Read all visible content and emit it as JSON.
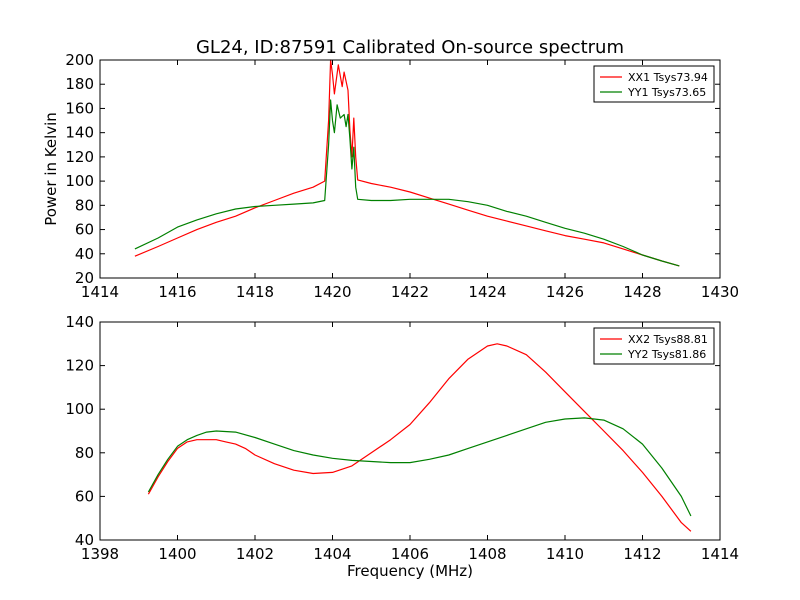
{
  "colors": {
    "xx": "#ff0000",
    "yy": "#008000"
  },
  "chart_data": [
    {
      "type": "line",
      "title": "GL24, ID:87591 Calibrated On-source spectrum",
      "xlabel": "",
      "ylabel": "Power in Kelvin",
      "xlim": [
        1414,
        1430
      ],
      "ylim": [
        20,
        200
      ],
      "xticks": [
        "1414",
        "1416",
        "1418",
        "1420",
        "1422",
        "1424",
        "1426",
        "1428",
        "1430"
      ],
      "yticks": [
        "20",
        "40",
        "60",
        "80",
        "100",
        "120",
        "140",
        "160",
        "180",
        "200"
      ],
      "grid": false,
      "legend": "top-right",
      "series": [
        {
          "name": "XX1 Tsys73.94",
          "color": "#ff0000",
          "points": [
            [
              1414.9,
              38
            ],
            [
              1415.5,
              46
            ],
            [
              1416.0,
              53
            ],
            [
              1416.5,
              60
            ],
            [
              1417.0,
              66
            ],
            [
              1417.5,
              71
            ],
            [
              1418.0,
              78
            ],
            [
              1418.5,
              84
            ],
            [
              1419.0,
              90
            ],
            [
              1419.5,
              95
            ],
            [
              1419.8,
              100
            ],
            [
              1419.9,
              150
            ],
            [
              1419.95,
              200
            ],
            [
              1420.0,
              188
            ],
            [
              1420.05,
              172
            ],
            [
              1420.15,
              196
            ],
            [
              1420.25,
              178
            ],
            [
              1420.3,
              190
            ],
            [
              1420.4,
              175
            ],
            [
              1420.45,
              142
            ],
            [
              1420.5,
              120
            ],
            [
              1420.55,
              152
            ],
            [
              1420.6,
              120
            ],
            [
              1420.65,
              101
            ],
            [
              1421.0,
              98
            ],
            [
              1421.5,
              95
            ],
            [
              1422.0,
              91
            ],
            [
              1422.5,
              86
            ],
            [
              1423.0,
              81
            ],
            [
              1423.5,
              76
            ],
            [
              1424.0,
              71
            ],
            [
              1424.5,
              67
            ],
            [
              1425.0,
              63
            ],
            [
              1425.5,
              59
            ],
            [
              1426.0,
              55
            ],
            [
              1426.5,
              52
            ],
            [
              1427.0,
              49
            ],
            [
              1427.5,
              44
            ],
            [
              1428.0,
              39
            ],
            [
              1428.5,
              34
            ],
            [
              1428.95,
              30
            ]
          ]
        },
        {
          "name": "YY1 Tsys73.65",
          "color": "#008000",
          "points": [
            [
              1414.9,
              44
            ],
            [
              1415.5,
              53
            ],
            [
              1416.0,
              62
            ],
            [
              1416.5,
              68
            ],
            [
              1417.0,
              73
            ],
            [
              1417.5,
              77
            ],
            [
              1418.0,
              79
            ],
            [
              1418.5,
              80
            ],
            [
              1419.0,
              81
            ],
            [
              1419.5,
              82
            ],
            [
              1419.8,
              84
            ],
            [
              1419.9,
              130
            ],
            [
              1419.95,
              167
            ],
            [
              1420.0,
              150
            ],
            [
              1420.05,
              140
            ],
            [
              1420.12,
              163
            ],
            [
              1420.2,
              152
            ],
            [
              1420.3,
              155
            ],
            [
              1420.35,
              145
            ],
            [
              1420.4,
              155
            ],
            [
              1420.45,
              135
            ],
            [
              1420.5,
              110
            ],
            [
              1420.55,
              128
            ],
            [
              1420.6,
              95
            ],
            [
              1420.65,
              85
            ],
            [
              1421.0,
              84
            ],
            [
              1421.5,
              84
            ],
            [
              1422.0,
              85
            ],
            [
              1422.5,
              85
            ],
            [
              1423.0,
              85
            ],
            [
              1423.5,
              83
            ],
            [
              1424.0,
              80
            ],
            [
              1424.5,
              75
            ],
            [
              1425.0,
              71
            ],
            [
              1425.5,
              66
            ],
            [
              1426.0,
              61
            ],
            [
              1426.5,
              57
            ],
            [
              1427.0,
              52
            ],
            [
              1427.5,
              46
            ],
            [
              1428.0,
              39
            ],
            [
              1428.5,
              34
            ],
            [
              1428.95,
              30
            ]
          ]
        }
      ]
    },
    {
      "type": "line",
      "title": "",
      "xlabel": "Frequency (MHz)",
      "ylabel": "",
      "xlim": [
        1398,
        1414
      ],
      "ylim": [
        40,
        140
      ],
      "xticks": [
        "1398",
        "1400",
        "1402",
        "1404",
        "1406",
        "1408",
        "1410",
        "1412",
        "1414"
      ],
      "yticks": [
        "40",
        "60",
        "80",
        "100",
        "120",
        "140"
      ],
      "grid": false,
      "legend": "top-right",
      "series": [
        {
          "name": "XX2 Tsys88.81",
          "color": "#ff0000",
          "points": [
            [
              1399.25,
              61
            ],
            [
              1399.5,
              69
            ],
            [
              1399.75,
              76
            ],
            [
              1400.0,
              82
            ],
            [
              1400.25,
              85
            ],
            [
              1400.5,
              86
            ],
            [
              1400.75,
              86
            ],
            [
              1401.0,
              86
            ],
            [
              1401.25,
              85
            ],
            [
              1401.5,
              84
            ],
            [
              1401.75,
              82
            ],
            [
              1402.0,
              79
            ],
            [
              1402.5,
              75
            ],
            [
              1403.0,
              72
            ],
            [
              1403.5,
              70.5
            ],
            [
              1404.0,
              71
            ],
            [
              1404.5,
              74
            ],
            [
              1405.0,
              80
            ],
            [
              1405.5,
              86
            ],
            [
              1406.0,
              93
            ],
            [
              1406.5,
              103
            ],
            [
              1407.0,
              114
            ],
            [
              1407.5,
              123
            ],
            [
              1408.0,
              129
            ],
            [
              1408.25,
              130
            ],
            [
              1408.5,
              129
            ],
            [
              1409.0,
              125
            ],
            [
              1409.5,
              117
            ],
            [
              1410.0,
              108
            ],
            [
              1410.5,
              99
            ],
            [
              1411.0,
              90
            ],
            [
              1411.5,
              81
            ],
            [
              1412.0,
              71
            ],
            [
              1412.5,
              60
            ],
            [
              1413.0,
              48
            ],
            [
              1413.25,
              44
            ]
          ]
        },
        {
          "name": "YY2 Tsys81.86",
          "color": "#008000",
          "points": [
            [
              1399.25,
              62
            ],
            [
              1399.5,
              70
            ],
            [
              1399.75,
              77
            ],
            [
              1400.0,
              83
            ],
            [
              1400.25,
              86
            ],
            [
              1400.5,
              88
            ],
            [
              1400.75,
              89.5
            ],
            [
              1401.0,
              90
            ],
            [
              1401.5,
              89.5
            ],
            [
              1402.0,
              87
            ],
            [
              1402.5,
              84
            ],
            [
              1403.0,
              81
            ],
            [
              1403.5,
              79
            ],
            [
              1404.0,
              77.5
            ],
            [
              1404.5,
              76.5
            ],
            [
              1405.0,
              76
            ],
            [
              1405.5,
              75.5
            ],
            [
              1406.0,
              75.5
            ],
            [
              1406.5,
              77
            ],
            [
              1407.0,
              79
            ],
            [
              1407.5,
              82
            ],
            [
              1408.0,
              85
            ],
            [
              1408.5,
              88
            ],
            [
              1409.0,
              91
            ],
            [
              1409.5,
              94
            ],
            [
              1410.0,
              95.5
            ],
            [
              1410.5,
              96
            ],
            [
              1411.0,
              95
            ],
            [
              1411.5,
              91
            ],
            [
              1412.0,
              84
            ],
            [
              1412.5,
              73
            ],
            [
              1413.0,
              60
            ],
            [
              1413.25,
              51
            ]
          ]
        }
      ]
    }
  ]
}
